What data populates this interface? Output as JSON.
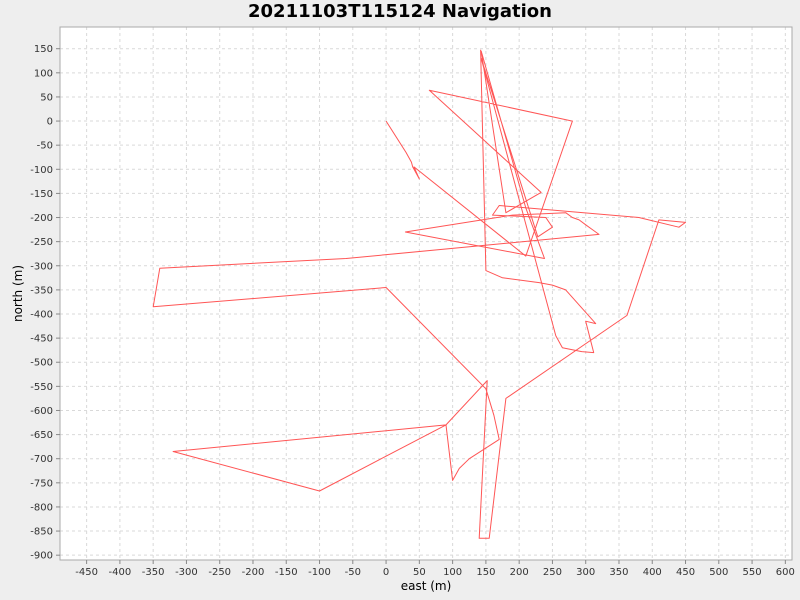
{
  "chart_data": {
    "type": "line",
    "title": "20211103T115124 Navigation",
    "xlabel": "east (m)",
    "ylabel": "north (m)",
    "xlim": [
      -490,
      610
    ],
    "ylim": [
      -910,
      195
    ],
    "x_ticks": [
      -450,
      -400,
      -350,
      -300,
      -250,
      -200,
      -150,
      -100,
      -50,
      0,
      50,
      100,
      150,
      200,
      250,
      300,
      350,
      400,
      450,
      500,
      550,
      600
    ],
    "y_ticks": [
      150,
      100,
      50,
      0,
      -50,
      -100,
      -150,
      -200,
      -250,
      -300,
      -350,
      -400,
      -450,
      -500,
      -550,
      -600,
      -650,
      -700,
      -750,
      -800,
      -850,
      -900
    ],
    "grid": true,
    "legend": "none",
    "colors": {
      "line": "#ff5555",
      "grid": "#d9d9d9",
      "plot_bg": "#ffffff",
      "page_bg": "#eeeeee"
    },
    "series": [
      {
        "x": [
          0,
          30,
          38,
          40,
          50,
          42,
          210,
          280,
          65,
          233,
          180,
          143,
          210,
          238,
          29,
          190,
          270,
          280,
          290,
          300,
          310,
          320,
          -60,
          -340,
          -350,
          0,
          150,
          162,
          170,
          125,
          110,
          100,
          90,
          -320,
          -100,
          90,
          152,
          140,
          155,
          180,
          362,
          410,
          450,
          440,
          380,
          170,
          160,
          240,
          250,
          228,
          143,
          255,
          265,
          294,
          312,
          300,
          315,
          270,
          250,
          230,
          175,
          150,
          142
        ],
        "y": [
          0,
          -65,
          -85,
          -95,
          -120,
          -95,
          -280,
          0,
          64,
          -148,
          -190,
          145,
          -180,
          -285,
          -230,
          -195,
          -190,
          -200,
          -205,
          -215,
          -225,
          -235,
          -285,
          -305,
          -385,
          -345,
          -555,
          -610,
          -660,
          -700,
          -720,
          -745,
          -630,
          -685,
          -767,
          -630,
          -538,
          -865,
          -865,
          -575,
          -403,
          -205,
          -210,
          -220,
          -200,
          -175,
          -195,
          -200,
          -220,
          -240,
          130,
          -445,
          -470,
          -478,
          -480,
          -415,
          -420,
          -350,
          -340,
          -335,
          -325,
          -310,
          148
        ]
      }
    ]
  }
}
